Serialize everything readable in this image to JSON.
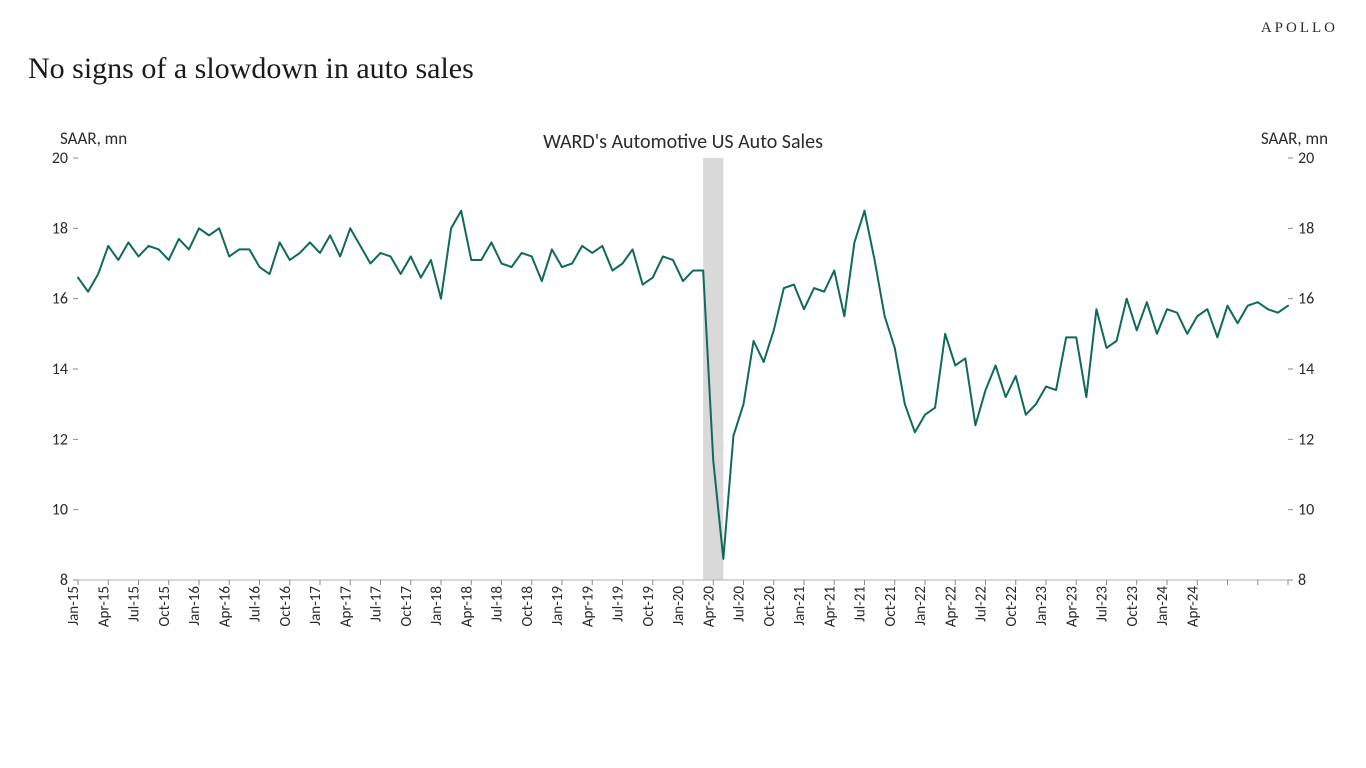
{
  "brand": "APOLLO",
  "title": "No signs of a slowdown in auto sales",
  "chart": {
    "type": "line",
    "chart_label": "WARD's Automotive US Auto Sales",
    "y_axis_label": "SAAR, mn",
    "ylim": [
      8,
      20
    ],
    "ytick_step": 2,
    "line_color": "#0f6a5a",
    "line_width": 2,
    "background_color": "#ffffff",
    "axis_color": "#bfbfbf",
    "tick_color": "#8a8a8a",
    "shaded_band": {
      "start_idx": 62,
      "end_idx": 64,
      "fill": "#d9d9d9"
    },
    "x_labels": [
      "Jan-15",
      "Apr-15",
      "Jul-15",
      "Oct-15",
      "Jan-16",
      "Apr-16",
      "Jul-16",
      "Oct-16",
      "Jan-17",
      "Apr-17",
      "Jul-17",
      "Oct-17",
      "Jan-18",
      "Apr-18",
      "Jul-18",
      "Oct-18",
      "Jan-19",
      "Apr-19",
      "Jul-19",
      "Oct-19",
      "Jan-20",
      "Apr-20",
      "Jul-20",
      "Oct-20",
      "Jan-21",
      "Apr-21",
      "Jul-21",
      "Oct-21",
      "Jan-22",
      "Apr-22",
      "Jul-22",
      "Oct-22",
      "Jan-23",
      "Apr-23",
      "Jul-23",
      "Oct-23",
      "Jan-24",
      "Apr-24"
    ],
    "values": [
      16.6,
      16.2,
      16.7,
      17.5,
      17.1,
      17.6,
      17.2,
      17.5,
      17.4,
      17.1,
      17.7,
      17.4,
      18.0,
      17.8,
      18.0,
      17.2,
      17.4,
      17.4,
      16.9,
      16.7,
      17.6,
      17.1,
      17.3,
      17.6,
      17.3,
      17.8,
      17.2,
      18.0,
      17.5,
      17.0,
      17.3,
      17.2,
      16.7,
      17.2,
      16.6,
      17.1,
      16.0,
      18.0,
      18.5,
      17.1,
      17.1,
      17.6,
      17.0,
      16.9,
      17.3,
      17.2,
      16.5,
      17.4,
      16.9,
      17.0,
      17.5,
      17.3,
      17.5,
      16.8,
      17.0,
      17.4,
      16.4,
      16.6,
      17.2,
      17.1,
      16.5,
      16.8,
      16.8,
      11.4,
      8.6,
      12.1,
      13.0,
      14.8,
      14.2,
      15.1,
      16.3,
      16.4,
      15.7,
      16.3,
      16.2,
      16.8,
      15.5,
      17.6,
      18.5,
      17.1,
      15.5,
      14.6,
      13.0,
      12.2,
      12.7,
      12.9,
      15.0,
      14.1,
      14.3,
      12.4,
      13.4,
      14.1,
      13.2,
      13.8,
      12.7,
      13.0,
      13.5,
      13.4,
      14.9,
      14.9,
      13.2,
      15.7,
      14.6,
      14.8,
      16.0,
      15.1,
      15.9,
      15.0,
      15.7,
      15.6,
      15.0,
      15.5,
      15.7,
      14.9,
      15.8,
      15.3,
      15.8,
      15.9,
      15.7,
      15.6,
      15.8
    ],
    "label_fontsize": 17,
    "tick_fontsize": 16,
    "xtick_fontsize": 15
  }
}
